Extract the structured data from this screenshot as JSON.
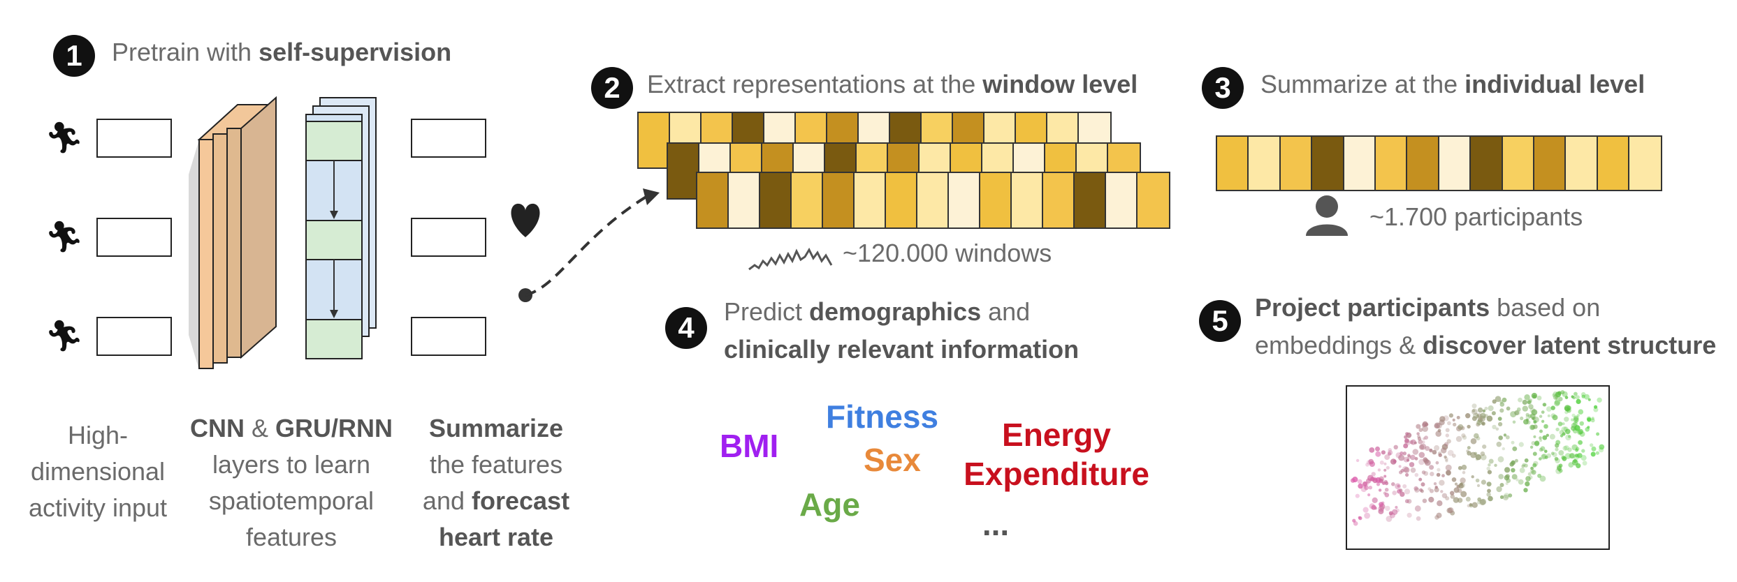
{
  "steps": [
    {
      "number": "1",
      "pre": "Pretrain with ",
      "bold": "self-supervision",
      "post": ""
    },
    {
      "number": "2",
      "pre": "Extract representations at the ",
      "bold": "window level",
      "post": ""
    },
    {
      "number": "3",
      "pre": "Summarize at the ",
      "bold": "individual level",
      "post": ""
    },
    {
      "number": "4",
      "line1_bold": "demographics",
      "line1_pre": "Predict ",
      "line1_post": " and",
      "line2_bold": "clinically relevant information"
    },
    {
      "number": "5",
      "line1_bold": "Project participants",
      "line1_post": " based on",
      "line2_pre": "embeddings & ",
      "line2_bold": "discover latent structure"
    }
  ],
  "captions": {
    "input": [
      "High-",
      "dimensional",
      "activity input"
    ],
    "layers": {
      "l1_b1": "CNN",
      "l1_mid": " & ",
      "l1_b2": "GRU/RNN",
      "l2": "layers to learn",
      "l3": "spatiotemporal",
      "l4": "features"
    },
    "summarize": {
      "l1_b": "Summarize",
      "l2": "the features",
      "l3_pre": "and ",
      "l3_b": "forecast",
      "l4_b": "heart rate"
    }
  },
  "windows_label": "~120.000 windows",
  "participants_label": "~1.700 participants",
  "outcomes": [
    {
      "label": "BMI",
      "color": "#a020f0"
    },
    {
      "label": "Fitness",
      "color": "#3f7fe0"
    },
    {
      "label": "Sex",
      "color": "#e8893a"
    },
    {
      "label": "Age",
      "color": "#6aaa48"
    },
    {
      "label": "Energy",
      "color": "#c8101e"
    },
    {
      "label": "Expenditure",
      "color": "#c8101e"
    },
    {
      "label": "...",
      "color": "#555555"
    }
  ],
  "palette": [
    "#f0c040",
    "#fde8a6",
    "#f3c44c",
    "#7a5a10",
    "#fdf2d6",
    "#f3c44c",
    "#c49020",
    "#fdf2d6",
    "#7a5a10",
    "#f7d060",
    "#c49020",
    "#fde8a6",
    "#f0c040",
    "#fde8a6",
    "#fdf2d6"
  ],
  "icons": [
    "runner-icon",
    "heart-icon",
    "person-icon",
    "signal-wave-icon"
  ]
}
